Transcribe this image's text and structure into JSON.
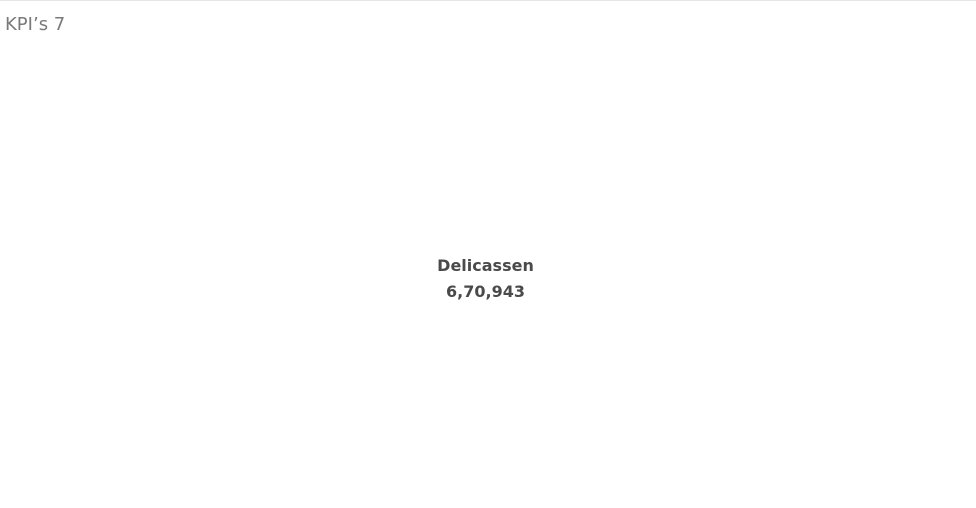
{
  "sheet": {
    "title": "KPI’s 7"
  },
  "kpi": {
    "label": "Delicassen",
    "value": "6,70,943"
  },
  "colors": {
    "title_text": "#7a7a7a",
    "kpi_text": "#4a4a4a",
    "background": "#ffffff",
    "divider": "#e6e6e6"
  }
}
